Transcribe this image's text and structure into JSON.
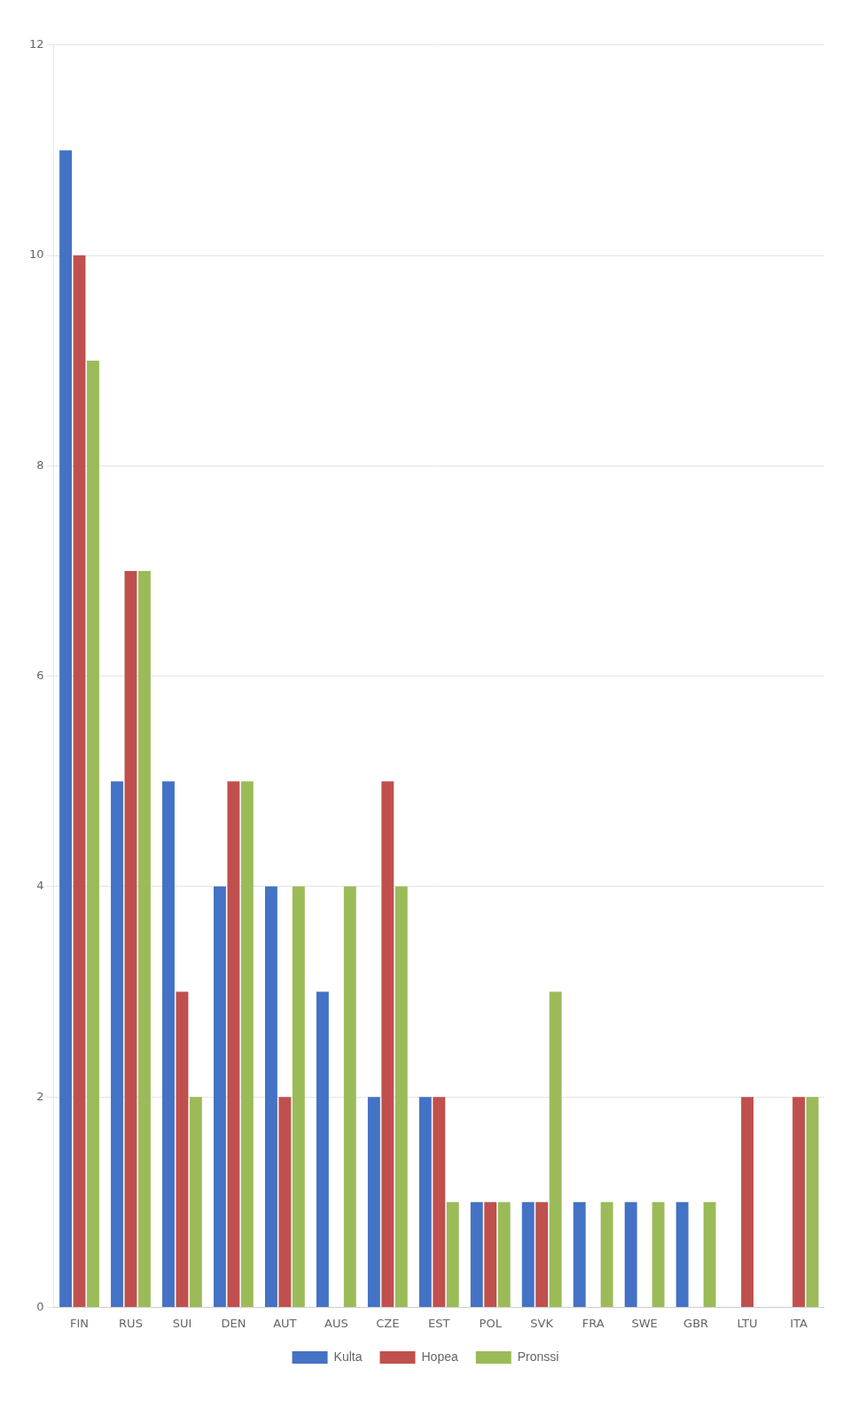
{
  "chart_data": {
    "type": "bar",
    "categories": [
      "FIN",
      "RUS",
      "SUI",
      "DEN",
      "AUT",
      "AUS",
      "CZE",
      "EST",
      "POL",
      "SVK",
      "FRA",
      "SWE",
      "GBR",
      "LTU",
      "ITA"
    ],
    "series": [
      {
        "name": "Kulta",
        "color": "#4472C4",
        "values": [
          11,
          5,
          5,
          4,
          4,
          3,
          2,
          2,
          1,
          1,
          1,
          1,
          1,
          0,
          0
        ]
      },
      {
        "name": "Hopea",
        "color": "#C0504D",
        "values": [
          10,
          7,
          3,
          5,
          2,
          0,
          5,
          2,
          1,
          1,
          0,
          0,
          0,
          2,
          2
        ]
      },
      {
        "name": "Pronssi",
        "color": "#9BBB59",
        "values": [
          9,
          7,
          2,
          5,
          4,
          4,
          4,
          1,
          1,
          3,
          1,
          1,
          1,
          0,
          2
        ]
      }
    ],
    "ylim": [
      0,
      12
    ],
    "yticks": [
      0,
      2,
      4,
      6,
      8,
      10,
      12
    ],
    "grid": true,
    "legend": "bottom"
  }
}
